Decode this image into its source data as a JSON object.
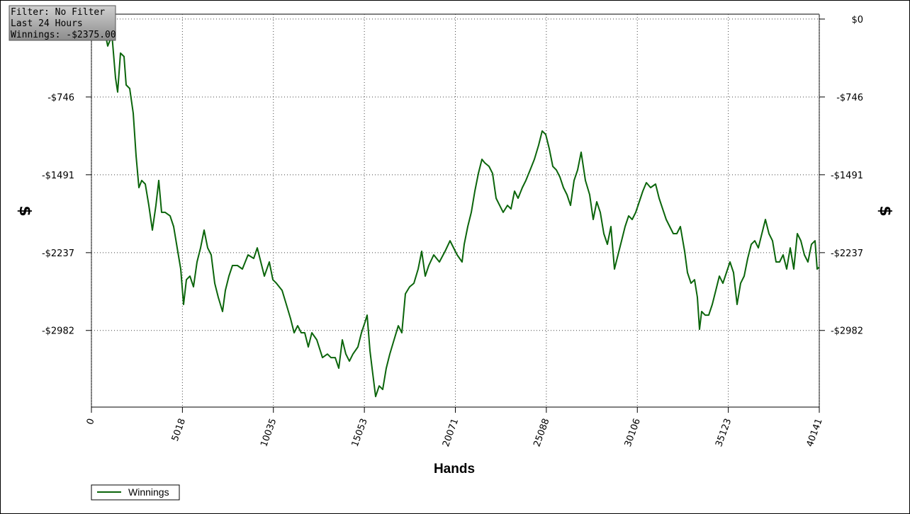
{
  "chart_data": {
    "type": "line",
    "annotations": [
      "Filter: No Filter",
      "Last  24 Hours",
      "Winnings: -$2375.00"
    ],
    "xlabel": "Hands",
    "ylabel": "$",
    "legend": "lower left",
    "grid": true,
    "xlim": [
      0,
      40141
    ],
    "xticks": [
      0,
      5018,
      10035,
      15053,
      20071,
      25088,
      30106,
      35123,
      40141
    ],
    "ylim": [
      -3716,
      47
    ],
    "yticks": [
      {
        "value": 0,
        "label": "$0"
      },
      {
        "value": -746,
        "label": "-$746"
      },
      {
        "value": -1491,
        "label": "-$1491"
      },
      {
        "value": -2237,
        "label": "-$2237"
      },
      {
        "value": -2982,
        "label": "-$2982"
      }
    ],
    "x": [
      743,
      899,
      1134,
      1329,
      1446,
      1603,
      1798,
      1915,
      2111,
      2306,
      2462,
      2619,
      2775,
      2971,
      3166,
      3361,
      3557,
      3713,
      3870,
      4065,
      4339,
      4534,
      4730,
      4925,
      5081,
      5238,
      5433,
      5628,
      5824,
      6019,
      6215,
      6410,
      6606,
      6801,
      6996,
      7231,
      7387,
      7583,
      7778,
      8052,
      8325,
      8638,
      8951,
      9146,
      9342,
      9537,
      9811,
      10006,
      10201,
      10514,
      10749,
      10983,
      11179,
      11374,
      11569,
      11765,
      11960,
      12156,
      12429,
      12742,
      13016,
      13211,
      13446,
      13641,
      13836,
      14032,
      14227,
      14423,
      14696,
      14892,
      15087,
      15204,
      15361,
      15478,
      15673,
      15869,
      16064,
      16260,
      16455,
      16690,
      16924,
      17120,
      17315,
      17550,
      17784,
      18019,
      18214,
      18410,
      18605,
      18879,
      19191,
      19504,
      19778,
      20168,
      20442,
      20559,
      20755,
      20950,
      21145,
      21341,
      21536,
      21693,
      21927,
      22123,
      22318,
      22514,
      22709,
      22943,
      23139,
      23334,
      23530,
      23764,
      23960,
      24194,
      24429,
      24663,
      24859,
      25054,
      25250,
      25445,
      25640,
      25836,
      26031,
      26227,
      26422,
      26618,
      26813,
      27008,
      27243,
      27477,
      27673,
      27868,
      28064,
      28259,
      28455,
      28650,
      28845,
      29041,
      29236,
      29432,
      29627,
      29823,
      30018,
      30213,
      30409,
      30604,
      30839,
      31112,
      31308,
      31503,
      31699,
      31894,
      32089,
      32285,
      32480,
      32715,
      32871,
      33067,
      33262,
      33418,
      33536,
      33653,
      33848,
      34044,
      34239,
      34435,
      34630,
      34826,
      35021,
      35216,
      35412,
      35607,
      35803,
      35998,
      36194,
      36389,
      36584,
      36780,
      36975,
      37171,
      37366,
      37562,
      37757,
      37953,
      38148,
      38343,
      38539,
      38734,
      38930,
      39125,
      39321,
      39516,
      39711,
      39907,
      40024,
      40141
    ],
    "series": [
      {
        "name": "Winnings",
        "color": "#0b650b",
        "values": [
          -122,
          -258,
          -156,
          -563,
          -699,
          -326,
          -359,
          -631,
          -665,
          -902,
          -1309,
          -1614,
          -1546,
          -1580,
          -1784,
          -2021,
          -1784,
          -1546,
          -1851,
          -1851,
          -1885,
          -1987,
          -2191,
          -2394,
          -2733,
          -2496,
          -2462,
          -2564,
          -2326,
          -2191,
          -2021,
          -2191,
          -2258,
          -2530,
          -2665,
          -2801,
          -2598,
          -2462,
          -2360,
          -2360,
          -2394,
          -2258,
          -2292,
          -2191,
          -2326,
          -2462,
          -2326,
          -2496,
          -2530,
          -2598,
          -2733,
          -2869,
          -3004,
          -2937,
          -3004,
          -3004,
          -3140,
          -3004,
          -3072,
          -3242,
          -3208,
          -3242,
          -3242,
          -3344,
          -3072,
          -3208,
          -3276,
          -3208,
          -3140,
          -3004,
          -2903,
          -2835,
          -3174,
          -3344,
          -3615,
          -3513,
          -3547,
          -3344,
          -3208,
          -3072,
          -2937,
          -3004,
          -2631,
          -2564,
          -2530,
          -2394,
          -2224,
          -2462,
          -2360,
          -2258,
          -2326,
          -2224,
          -2123,
          -2258,
          -2326,
          -2157,
          -1987,
          -1851,
          -1648,
          -1478,
          -1343,
          -1377,
          -1411,
          -1478,
          -1716,
          -1784,
          -1851,
          -1784,
          -1818,
          -1648,
          -1716,
          -1614,
          -1546,
          -1445,
          -1343,
          -1207,
          -1072,
          -1105,
          -1241,
          -1411,
          -1445,
          -1512,
          -1614,
          -1682,
          -1784,
          -1546,
          -1445,
          -1275,
          -1546,
          -1682,
          -1919,
          -1750,
          -1851,
          -2055,
          -2157,
          -1987,
          -2394,
          -2258,
          -2123,
          -1987,
          -1885,
          -1919,
          -1851,
          -1750,
          -1648,
          -1567,
          -1614,
          -1580,
          -1716,
          -1818,
          -1919,
          -1987,
          -2055,
          -2055,
          -1987,
          -2224,
          -2428,
          -2530,
          -2496,
          -2665,
          -2971,
          -2801,
          -2835,
          -2835,
          -2733,
          -2598,
          -2462,
          -2530,
          -2428,
          -2326,
          -2428,
          -2733,
          -2530,
          -2462,
          -2292,
          -2157,
          -2123,
          -2191,
          -2055,
          -1919,
          -2055,
          -2123,
          -2326,
          -2326,
          -2258,
          -2394,
          -2191,
          -2394,
          -2055,
          -2123,
          -2258,
          -2326,
          -2157,
          -2123,
          -2394,
          -2375
        ]
      }
    ]
  }
}
